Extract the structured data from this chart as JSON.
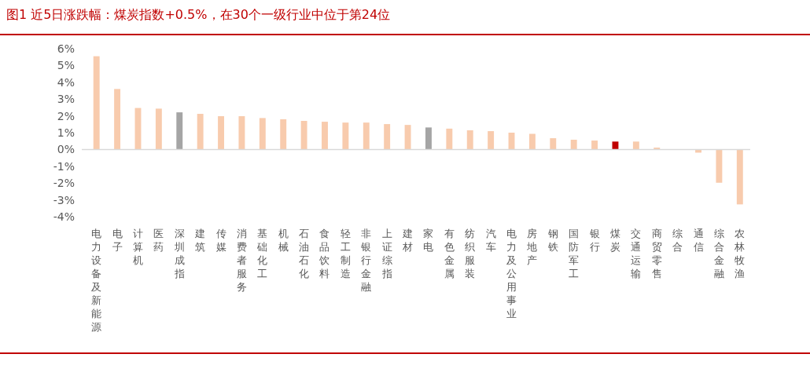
{
  "chart_data": {
    "type": "bar",
    "title": "图1 近5日涨跌幅：煤炭指数+0.5%，在30个一级行业中位于第24位",
    "categories": [
      "电力设备及新能源",
      "电子",
      "计算机",
      "医药",
      "深圳成指",
      "建筑",
      "传媒",
      "消费者服务",
      "基础化工",
      "机械",
      "石油石化",
      "食品饮料",
      "轻工制造",
      "非银行金融",
      "上证综指",
      "建材",
      "家电",
      "有色金属",
      "纺织服装",
      "汽车",
      "电力及公用事业",
      "房地产",
      "钢铁",
      "国防军工",
      "银行",
      "煤炭",
      "交通运输",
      "商贸零售",
      "综合",
      "通信",
      "综合金融",
      "农林牧渔"
    ],
    "values": [
      5.55,
      3.6,
      2.47,
      2.43,
      2.21,
      2.12,
      1.98,
      1.98,
      1.87,
      1.8,
      1.7,
      1.65,
      1.6,
      1.6,
      1.51,
      1.46,
      1.31,
      1.24,
      1.14,
      1.09,
      1.0,
      0.93,
      0.67,
      0.58,
      0.53,
      0.47,
      0.47,
      0.11,
      0,
      -0.19,
      -1.98,
      -3.27
    ],
    "colors": [
      "#f8cbad",
      "#f8cbad",
      "#f8cbad",
      "#f8cbad",
      "#a5a5a5",
      "#f8cbad",
      "#f8cbad",
      "#f8cbad",
      "#f8cbad",
      "#f8cbad",
      "#f8cbad",
      "#f8cbad",
      "#f8cbad",
      "#f8cbad",
      "#f8cbad",
      "#f8cbad",
      "#a5a5a5",
      "#f8cbad",
      "#f8cbad",
      "#f8cbad",
      "#f8cbad",
      "#f8cbad",
      "#f8cbad",
      "#f8cbad",
      "#f8cbad",
      "#c00000",
      "#f8cbad",
      "#f8cbad",
      "#f8cbad",
      "#f8cbad",
      "#f8cbad",
      "#f8cbad"
    ],
    "ylim": [
      -4,
      6
    ],
    "yticks": [
      {
        "value": -4,
        "label": "-4%"
      },
      {
        "value": -3,
        "label": "-3%"
      },
      {
        "value": -2,
        "label": "-2%"
      },
      {
        "value": -1,
        "label": "-1%"
      },
      {
        "value": 0,
        "label": "0%"
      },
      {
        "value": 1,
        "label": "1%"
      },
      {
        "value": 2,
        "label": "2%"
      },
      {
        "value": 3,
        "label": "3%"
      },
      {
        "value": 4,
        "label": "4%"
      },
      {
        "value": 5,
        "label": "5%"
      },
      {
        "value": 6,
        "label": "6%"
      }
    ]
  }
}
